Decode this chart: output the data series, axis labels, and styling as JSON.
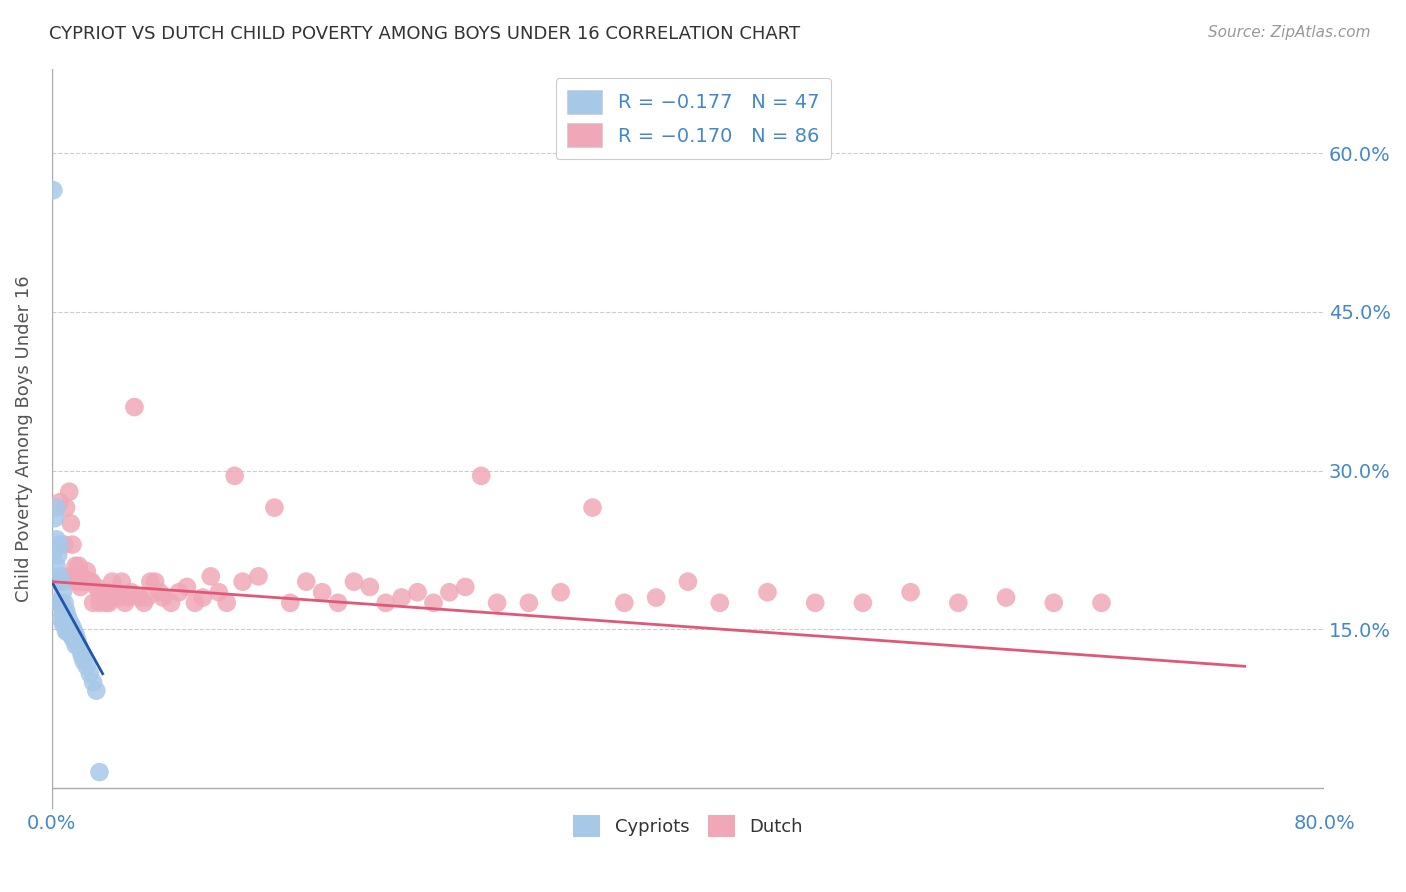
{
  "title": "CYPRIOT VS DUTCH CHILD POVERTY AMONG BOYS UNDER 16 CORRELATION CHART",
  "source": "Source: ZipAtlas.com",
  "ylabel": "Child Poverty Among Boys Under 16",
  "yticks": [
    "60.0%",
    "45.0%",
    "30.0%",
    "15.0%"
  ],
  "ytick_vals": [
    0.6,
    0.45,
    0.3,
    0.15
  ],
  "xlim": [
    0.0,
    0.8
  ],
  "ylim": [
    -0.02,
    0.68
  ],
  "cypriot_color": "#a8c8e8",
  "dutch_color": "#f0a8b8",
  "cypriot_line_color": "#2255aa",
  "dutch_line_color": "#e05878",
  "background_color": "#ffffff",
  "grid_color": "#cccccc",
  "tick_label_color": "#4488cc",
  "cypriot_scatter_x": [
    0.001,
    0.002,
    0.002,
    0.003,
    0.003,
    0.003,
    0.004,
    0.004,
    0.004,
    0.005,
    0.005,
    0.005,
    0.006,
    0.006,
    0.006,
    0.007,
    0.007,
    0.007,
    0.008,
    0.008,
    0.008,
    0.009,
    0.009,
    0.009,
    0.01,
    0.01,
    0.01,
    0.011,
    0.011,
    0.012,
    0.012,
    0.013,
    0.013,
    0.014,
    0.014,
    0.015,
    0.015,
    0.016,
    0.017,
    0.018,
    0.019,
    0.02,
    0.022,
    0.024,
    0.026,
    0.028,
    0.03
  ],
  "cypriot_scatter_y": [
    0.565,
    0.255,
    0.225,
    0.265,
    0.235,
    0.21,
    0.22,
    0.195,
    0.175,
    0.23,
    0.2,
    0.175,
    0.195,
    0.175,
    0.16,
    0.185,
    0.165,
    0.155,
    0.175,
    0.165,
    0.155,
    0.168,
    0.158,
    0.148,
    0.162,
    0.155,
    0.148,
    0.158,
    0.148,
    0.155,
    0.145,
    0.152,
    0.142,
    0.148,
    0.14,
    0.145,
    0.135,
    0.14,
    0.135,
    0.13,
    0.125,
    0.12,
    0.115,
    0.108,
    0.1,
    0.092,
    0.015
  ],
  "dutch_scatter_x": [
    0.003,
    0.005,
    0.006,
    0.008,
    0.008,
    0.009,
    0.01,
    0.011,
    0.012,
    0.013,
    0.014,
    0.015,
    0.015,
    0.016,
    0.017,
    0.018,
    0.019,
    0.02,
    0.022,
    0.022,
    0.024,
    0.025,
    0.026,
    0.028,
    0.03,
    0.03,
    0.032,
    0.034,
    0.035,
    0.036,
    0.038,
    0.04,
    0.042,
    0.044,
    0.046,
    0.048,
    0.05,
    0.052,
    0.055,
    0.058,
    0.06,
    0.062,
    0.065,
    0.068,
    0.07,
    0.075,
    0.08,
    0.085,
    0.09,
    0.095,
    0.1,
    0.105,
    0.11,
    0.115,
    0.12,
    0.13,
    0.14,
    0.15,
    0.16,
    0.17,
    0.18,
    0.19,
    0.2,
    0.21,
    0.22,
    0.23,
    0.24,
    0.25,
    0.26,
    0.27,
    0.28,
    0.3,
    0.32,
    0.34,
    0.36,
    0.38,
    0.4,
    0.42,
    0.45,
    0.48,
    0.51,
    0.54,
    0.57,
    0.6,
    0.63,
    0.66
  ],
  "dutch_scatter_y": [
    0.175,
    0.27,
    0.2,
    0.23,
    0.195,
    0.265,
    0.2,
    0.28,
    0.25,
    0.23,
    0.2,
    0.21,
    0.195,
    0.195,
    0.21,
    0.19,
    0.2,
    0.195,
    0.205,
    0.195,
    0.195,
    0.195,
    0.175,
    0.19,
    0.185,
    0.175,
    0.18,
    0.175,
    0.185,
    0.175,
    0.195,
    0.185,
    0.18,
    0.195,
    0.175,
    0.18,
    0.185,
    0.36,
    0.18,
    0.175,
    0.18,
    0.195,
    0.195,
    0.185,
    0.18,
    0.175,
    0.185,
    0.19,
    0.175,
    0.18,
    0.2,
    0.185,
    0.175,
    0.295,
    0.195,
    0.2,
    0.265,
    0.175,
    0.195,
    0.185,
    0.175,
    0.195,
    0.19,
    0.175,
    0.18,
    0.185,
    0.175,
    0.185,
    0.19,
    0.295,
    0.175,
    0.175,
    0.185,
    0.265,
    0.175,
    0.18,
    0.195,
    0.175,
    0.185,
    0.175,
    0.175,
    0.185,
    0.175,
    0.18,
    0.175,
    0.175
  ],
  "cypriot_line_x": [
    0.0,
    0.032
  ],
  "dutch_line_x": [
    0.0,
    0.75
  ],
  "cypriot_line_start_y": 0.195,
  "cypriot_line_end_y": 0.108,
  "dutch_line_start_y": 0.195,
  "dutch_line_end_y": 0.115
}
